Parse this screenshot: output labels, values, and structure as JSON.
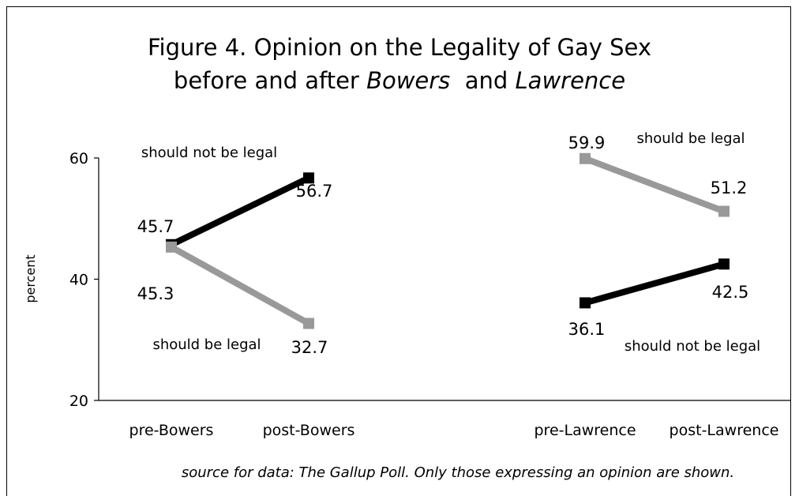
{
  "chart_data": {
    "type": "line",
    "title_line1": "Figure 4.  Opinion on the Legality of Gay Sex",
    "title_line2_prefix": "before and after ",
    "title_line2_bowers": "Bowers",
    "title_line2_and": "  and ",
    "title_line2_lawrence": "Lawrence",
    "ylabel": "percent",
    "ylim": [
      20,
      60
    ],
    "yticks": [
      "20",
      "40",
      "60"
    ],
    "categories": [
      "pre-Bowers",
      "post-Bowers",
      "pre-Lawrence",
      "post-Lawrence"
    ],
    "groups": [
      {
        "categories": [
          "pre-Bowers",
          "post-Bowers"
        ],
        "series": [
          {
            "name": "should not be legal",
            "values": [
              45.7,
              56.7
            ],
            "color": "#000000"
          },
          {
            "name": "should be legal",
            "values": [
              45.3,
              32.7
            ],
            "color": "#999999"
          }
        ]
      },
      {
        "categories": [
          "pre-Lawrence",
          "post-Lawrence"
        ],
        "series": [
          {
            "name": "should be legal",
            "values": [
              59.9,
              51.2
            ],
            "color": "#999999"
          },
          {
            "name": "should not be legal",
            "values": [
              36.1,
              42.5
            ],
            "color": "#000000"
          }
        ]
      }
    ],
    "data_labels": [
      "45.7",
      "56.7",
      "45.3",
      "32.7",
      "59.9",
      "51.2",
      "36.1",
      "42.5"
    ],
    "annotations": [
      "should not be legal",
      "should be legal",
      "should be legal",
      "should not be legal"
    ],
    "source": "source for data: The Gallup Poll.  Only those expressing an opinion are shown."
  }
}
